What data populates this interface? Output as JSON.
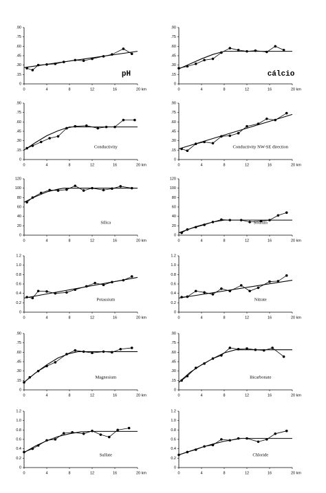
{
  "chart_data": [
    {
      "type": "line",
      "title": "pH",
      "xlim": [
        0,
        20
      ],
      "xticks": [
        0,
        4,
        8,
        12,
        16,
        {
          "value": 20,
          "label": "20 km"
        }
      ],
      "ylim": [
        0,
        0.9
      ],
      "yticks": [
        0,
        {
          "value": 0.15,
          "label": ".15"
        },
        {
          "value": 0.3,
          "label": ".30"
        },
        {
          "value": 0.45,
          "label": ".45"
        },
        {
          "value": 0.6,
          "label": ".60"
        },
        {
          "value": 0.75,
          "label": ".75"
        },
        {
          "value": 0.9,
          "label": ".90"
        }
      ],
      "series": [
        {
          "color": "#000",
          "markers": true,
          "x": [
            0.5,
            1.5,
            2.5,
            4,
            5.5,
            7,
            9,
            10.5,
            12,
            14,
            15.5,
            17.5,
            19
          ],
          "values": [
            0.25,
            0.22,
            0.3,
            0.31,
            0.32,
            0.35,
            0.38,
            0.37,
            0.4,
            0.44,
            0.47,
            0.56,
            0.48
          ]
        },
        {
          "color": "#000",
          "markers": false,
          "x": [
            0,
            20
          ],
          "values": [
            0.26,
            0.52
          ]
        }
      ]
    },
    {
      "type": "line",
      "title": "cálcio",
      "xlim": [
        0,
        20
      ],
      "xticks": [
        0,
        4,
        8,
        12,
        16,
        {
          "value": 20,
          "label": "20 km"
        }
      ],
      "ylim": [
        0,
        0.9
      ],
      "yticks": [
        0,
        {
          "value": 0.15,
          "label": ".15"
        },
        {
          "value": 0.3,
          "label": ".30"
        },
        {
          "value": 0.45,
          "label": ".45"
        },
        {
          "value": 0.6,
          "label": ".60"
        },
        {
          "value": 0.75,
          "label": ".75"
        },
        {
          "value": 0.9,
          "label": ".90"
        }
      ],
      "series": [
        {
          "color": "#000",
          "markers": true,
          "x": [
            0,
            1.5,
            3,
            4.5,
            6,
            7.5,
            9,
            10.5,
            12,
            13.5,
            15.5,
            17,
            18.5
          ],
          "values": [
            0.25,
            0.28,
            0.32,
            0.38,
            0.4,
            0.5,
            0.57,
            0.54,
            0.52,
            0.53,
            0.51,
            0.6,
            0.54
          ]
        },
        {
          "color": "#000",
          "markers": false,
          "x": [
            0,
            2,
            4,
            6,
            8,
            20
          ],
          "values": [
            0.24,
            0.32,
            0.4,
            0.47,
            0.52,
            0.52
          ]
        }
      ]
    },
    {
      "type": "line",
      "title": "Conductivity",
      "xlim": [
        0,
        20
      ],
      "xticks": [
        0,
        4,
        8,
        12,
        16,
        {
          "value": 20,
          "label": "20 km"
        }
      ],
      "ylim": [
        0,
        0.9
      ],
      "yticks": [
        0,
        {
          "value": 0.15,
          "label": ".15"
        },
        {
          "value": 0.3,
          "label": ".30"
        },
        {
          "value": 0.45,
          "label": ".45"
        },
        {
          "value": 0.6,
          "label": ".60"
        },
        {
          "value": 0.75,
          "label": ".75"
        },
        {
          "value": 0.9,
          "label": ".90"
        }
      ],
      "series": [
        {
          "color": "#000",
          "markers": true,
          "x": [
            0.5,
            1.5,
            3,
            4.5,
            6,
            7.5,
            9,
            11,
            13,
            14.5,
            16,
            17.5,
            19.5
          ],
          "values": [
            0.18,
            0.22,
            0.28,
            0.34,
            0.37,
            0.5,
            0.53,
            0.54,
            0.5,
            0.52,
            0.52,
            0.63,
            0.63
          ]
        },
        {
          "color": "#000",
          "markers": false,
          "x": [
            0,
            2,
            4,
            6,
            8,
            20
          ],
          "values": [
            0.15,
            0.27,
            0.38,
            0.46,
            0.52,
            0.52
          ]
        }
      ]
    },
    {
      "type": "line",
      "title": "Conductivity NW-SE direction",
      "xlim": [
        0,
        20
      ],
      "xticks": [
        0,
        4,
        8,
        12,
        16,
        {
          "value": 20,
          "label": "20 km"
        }
      ],
      "ylim": [
        0,
        0.9
      ],
      "yticks": [
        0,
        {
          "value": 0.15,
          "label": ".15"
        },
        {
          "value": 0.3,
          "label": ".30"
        },
        {
          "value": 0.45,
          "label": ".45"
        },
        {
          "value": 0.6,
          "label": ".60"
        },
        {
          "value": 0.75,
          "label": ".75"
        },
        {
          "value": 0.9,
          "label": ".90"
        }
      ],
      "series": [
        {
          "color": "#000",
          "markers": true,
          "x": [
            0.5,
            1.5,
            3,
            4.5,
            6,
            7.5,
            9,
            10.5,
            12,
            14,
            15.5,
            17,
            19
          ],
          "values": [
            0.17,
            0.14,
            0.25,
            0.28,
            0.26,
            0.37,
            0.38,
            0.42,
            0.53,
            0.57,
            0.65,
            0.63,
            0.74
          ]
        },
        {
          "color": "#000",
          "markers": false,
          "x": [
            0,
            20
          ],
          "values": [
            0.17,
            0.72
          ]
        }
      ]
    },
    {
      "type": "line",
      "title": "Silica",
      "xlim": [
        0,
        20
      ],
      "xticks": [
        0,
        4,
        8,
        12,
        16,
        {
          "value": 20,
          "label": "20 km"
        }
      ],
      "ylim": [
        0,
        120
      ],
      "yticks": [
        0,
        20,
        40,
        60,
        80,
        100,
        120
      ],
      "series": [
        {
          "color": "#000",
          "markers": true,
          "x": [
            0.5,
            1.5,
            3,
            4.5,
            6,
            7.5,
            9,
            10.5,
            12,
            14,
            15.5,
            17,
            19
          ],
          "values": [
            70,
            80,
            90,
            96,
            95,
            97,
            105,
            95,
            100,
            96,
            99,
            104,
            100
          ]
        },
        {
          "color": "#000",
          "markers": false,
          "x": [
            0,
            2,
            4,
            6,
            7,
            20
          ],
          "values": [
            70,
            82,
            92,
            98,
            100,
            100
          ]
        }
      ]
    },
    {
      "type": "line",
      "title": "Sodium",
      "xlim": [
        0,
        20
      ],
      "xticks": [
        0,
        4,
        8,
        12,
        16,
        {
          "value": 20,
          "label": "20 km"
        }
      ],
      "ylim": [
        0,
        120
      ],
      "yticks": [
        0,
        20,
        40,
        60,
        80,
        100,
        120
      ],
      "series": [
        {
          "color": "#000",
          "markers": true,
          "x": [
            0.5,
            1.5,
            3,
            4.5,
            6,
            7.5,
            9,
            11,
            12.5,
            14.5,
            16,
            17.5,
            19
          ],
          "values": [
            5,
            12,
            17,
            22,
            28,
            33,
            32,
            32,
            28,
            30,
            32,
            42,
            48
          ]
        },
        {
          "color": "#000",
          "markers": false,
          "x": [
            0,
            3,
            6,
            8,
            20
          ],
          "values": [
            5,
            18,
            28,
            32,
            32
          ]
        }
      ]
    },
    {
      "type": "line",
      "title": "Potassium",
      "xlim": [
        0,
        20
      ],
      "xticks": [
        0,
        4,
        8,
        12,
        16,
        {
          "value": 20,
          "label": "20 km"
        }
      ],
      "ylim": [
        0,
        1.2
      ],
      "yticks": [
        0,
        0.2,
        0.4,
        0.6,
        0.8,
        {
          "value": 1,
          "label": "1.0"
        },
        1.2
      ],
      "series": [
        {
          "color": "#000",
          "markers": true,
          "x": [
            0.5,
            1.5,
            2.5,
            4,
            5.5,
            7.5,
            9,
            11,
            12.5,
            14,
            15.5,
            17.5,
            19
          ],
          "values": [
            0.32,
            0.3,
            0.45,
            0.44,
            0.4,
            0.42,
            0.48,
            0.55,
            0.62,
            0.58,
            0.64,
            0.68,
            0.76
          ]
        },
        {
          "color": "#000",
          "markers": false,
          "x": [
            0,
            20
          ],
          "values": [
            0.3,
            0.74
          ]
        }
      ]
    },
    {
      "type": "line",
      "title": "Nitrate",
      "xlim": [
        0,
        20
      ],
      "xticks": [
        0,
        4,
        8,
        12,
        16,
        {
          "value": 20,
          "label": "20 km"
        }
      ],
      "ylim": [
        0,
        1.2
      ],
      "yticks": [
        0,
        0.2,
        0.4,
        0.6,
        0.8,
        {
          "value": 1,
          "label": "1.0"
        },
        1.2
      ],
      "series": [
        {
          "color": "#000",
          "markers": true,
          "x": [
            0.5,
            1.5,
            3,
            4.5,
            6,
            7.5,
            9,
            11,
            12.5,
            14,
            16,
            17.5,
            19
          ],
          "values": [
            0.32,
            0.33,
            0.45,
            0.42,
            0.38,
            0.5,
            0.45,
            0.57,
            0.45,
            0.52,
            0.65,
            0.66,
            0.78
          ]
        },
        {
          "color": "#000",
          "markers": false,
          "x": [
            0,
            20
          ],
          "values": [
            0.3,
            0.68
          ]
        }
      ]
    },
    {
      "type": "line",
      "title": "Magnesium",
      "xlim": [
        0,
        20
      ],
      "xticks": [
        0,
        4,
        8,
        12,
        16,
        {
          "value": 20,
          "label": "20 km"
        }
      ],
      "ylim": [
        0,
        0.9
      ],
      "yticks": [
        0,
        {
          "value": 0.15,
          "label": ".15"
        },
        {
          "value": 0.3,
          "label": ".30"
        },
        {
          "value": 0.45,
          "label": ".45"
        },
        {
          "value": 0.6,
          "label": ".60"
        },
        {
          "value": 0.75,
          "label": ".75"
        },
        {
          "value": 0.9,
          "label": ".90"
        }
      ],
      "series": [
        {
          "color": "#000",
          "markers": true,
          "x": [
            0,
            1,
            2.5,
            4,
            5.5,
            7.5,
            9,
            10.5,
            12,
            14,
            15.5,
            17,
            19
          ],
          "values": [
            0.12,
            0.2,
            0.3,
            0.38,
            0.44,
            0.57,
            0.63,
            0.61,
            0.59,
            0.61,
            0.6,
            0.65,
            0.67
          ]
        },
        {
          "color": "#000",
          "markers": false,
          "x": [
            0,
            2,
            4,
            6,
            8,
            9.5,
            20
          ],
          "values": [
            0.12,
            0.27,
            0.4,
            0.51,
            0.58,
            0.61,
            0.61
          ]
        }
      ]
    },
    {
      "type": "line",
      "title": "Bicarbonate",
      "xlim": [
        0,
        20
      ],
      "xticks": [
        0,
        4,
        8,
        12,
        16,
        {
          "value": 20,
          "label": "20 km"
        }
      ],
      "ylim": [
        0,
        0.9
      ],
      "yticks": [
        0,
        {
          "value": 0.15,
          "label": ".15"
        },
        {
          "value": 0.3,
          "label": ".30"
        },
        {
          "value": 0.45,
          "label": ".45"
        },
        {
          "value": 0.6,
          "label": ".60"
        },
        {
          "value": 0.75,
          "label": ".75"
        },
        {
          "value": 0.9,
          "label": ".90"
        }
      ],
      "series": [
        {
          "color": "#000",
          "markers": true,
          "x": [
            0.5,
            1.5,
            3,
            4.5,
            6,
            7.5,
            9,
            10.5,
            12,
            13.5,
            15,
            16.5,
            18.5
          ],
          "values": [
            0.15,
            0.22,
            0.35,
            0.42,
            0.5,
            0.55,
            0.67,
            0.65,
            0.66,
            0.64,
            0.63,
            0.67,
            0.53
          ]
        },
        {
          "color": "#000",
          "markers": false,
          "x": [
            0,
            2,
            4,
            6,
            8,
            10,
            20
          ],
          "values": [
            0.12,
            0.28,
            0.4,
            0.5,
            0.59,
            0.64,
            0.64
          ]
        }
      ]
    },
    {
      "type": "line",
      "title": "Sulfate",
      "xlim": [
        0,
        20
      ],
      "xticks": [
        0,
        4,
        8,
        12,
        16,
        {
          "value": 20,
          "label": "20 km"
        }
      ],
      "ylim": [
        0,
        1.2
      ],
      "yticks": [
        0,
        0.2,
        0.4,
        0.6,
        0.8,
        {
          "value": 1,
          "label": "1.0"
        },
        1.2
      ],
      "series": [
        {
          "color": "#000",
          "markers": true,
          "x": [
            0,
            1.5,
            2.5,
            4,
            5.5,
            7,
            8.5,
            10.5,
            12,
            13.5,
            15,
            16.5,
            18.5
          ],
          "values": [
            0.33,
            0.4,
            0.47,
            0.58,
            0.6,
            0.73,
            0.75,
            0.72,
            0.78,
            0.7,
            0.65,
            0.8,
            0.84
          ]
        },
        {
          "color": "#000",
          "markers": false,
          "x": [
            0,
            2,
            4,
            6,
            8,
            10,
            12,
            20
          ],
          "values": [
            0.32,
            0.46,
            0.57,
            0.66,
            0.72,
            0.76,
            0.77,
            0.77
          ]
        }
      ]
    },
    {
      "type": "line",
      "title": "Chloride",
      "xlim": [
        0,
        20
      ],
      "xticks": [
        0,
        4,
        8,
        12,
        16,
        {
          "value": 20,
          "label": "20 km"
        }
      ],
      "ylim": [
        0,
        1.2
      ],
      "yticks": [
        0,
        0.2,
        0.4,
        0.6,
        0.8,
        {
          "value": 1,
          "label": "1.0"
        },
        1.2
      ],
      "series": [
        {
          "color": "#000",
          "markers": true,
          "x": [
            0,
            1.5,
            3,
            4.5,
            6,
            7.5,
            9,
            10.5,
            12,
            14,
            15.5,
            17,
            19
          ],
          "values": [
            0.27,
            0.33,
            0.38,
            0.45,
            0.48,
            0.6,
            0.58,
            0.62,
            0.62,
            0.55,
            0.6,
            0.72,
            0.78
          ]
        },
        {
          "color": "#000",
          "markers": false,
          "x": [
            0,
            2,
            4,
            6,
            8,
            10,
            11,
            20
          ],
          "values": [
            0.27,
            0.35,
            0.43,
            0.5,
            0.56,
            0.6,
            0.62,
            0.62
          ]
        }
      ]
    }
  ]
}
